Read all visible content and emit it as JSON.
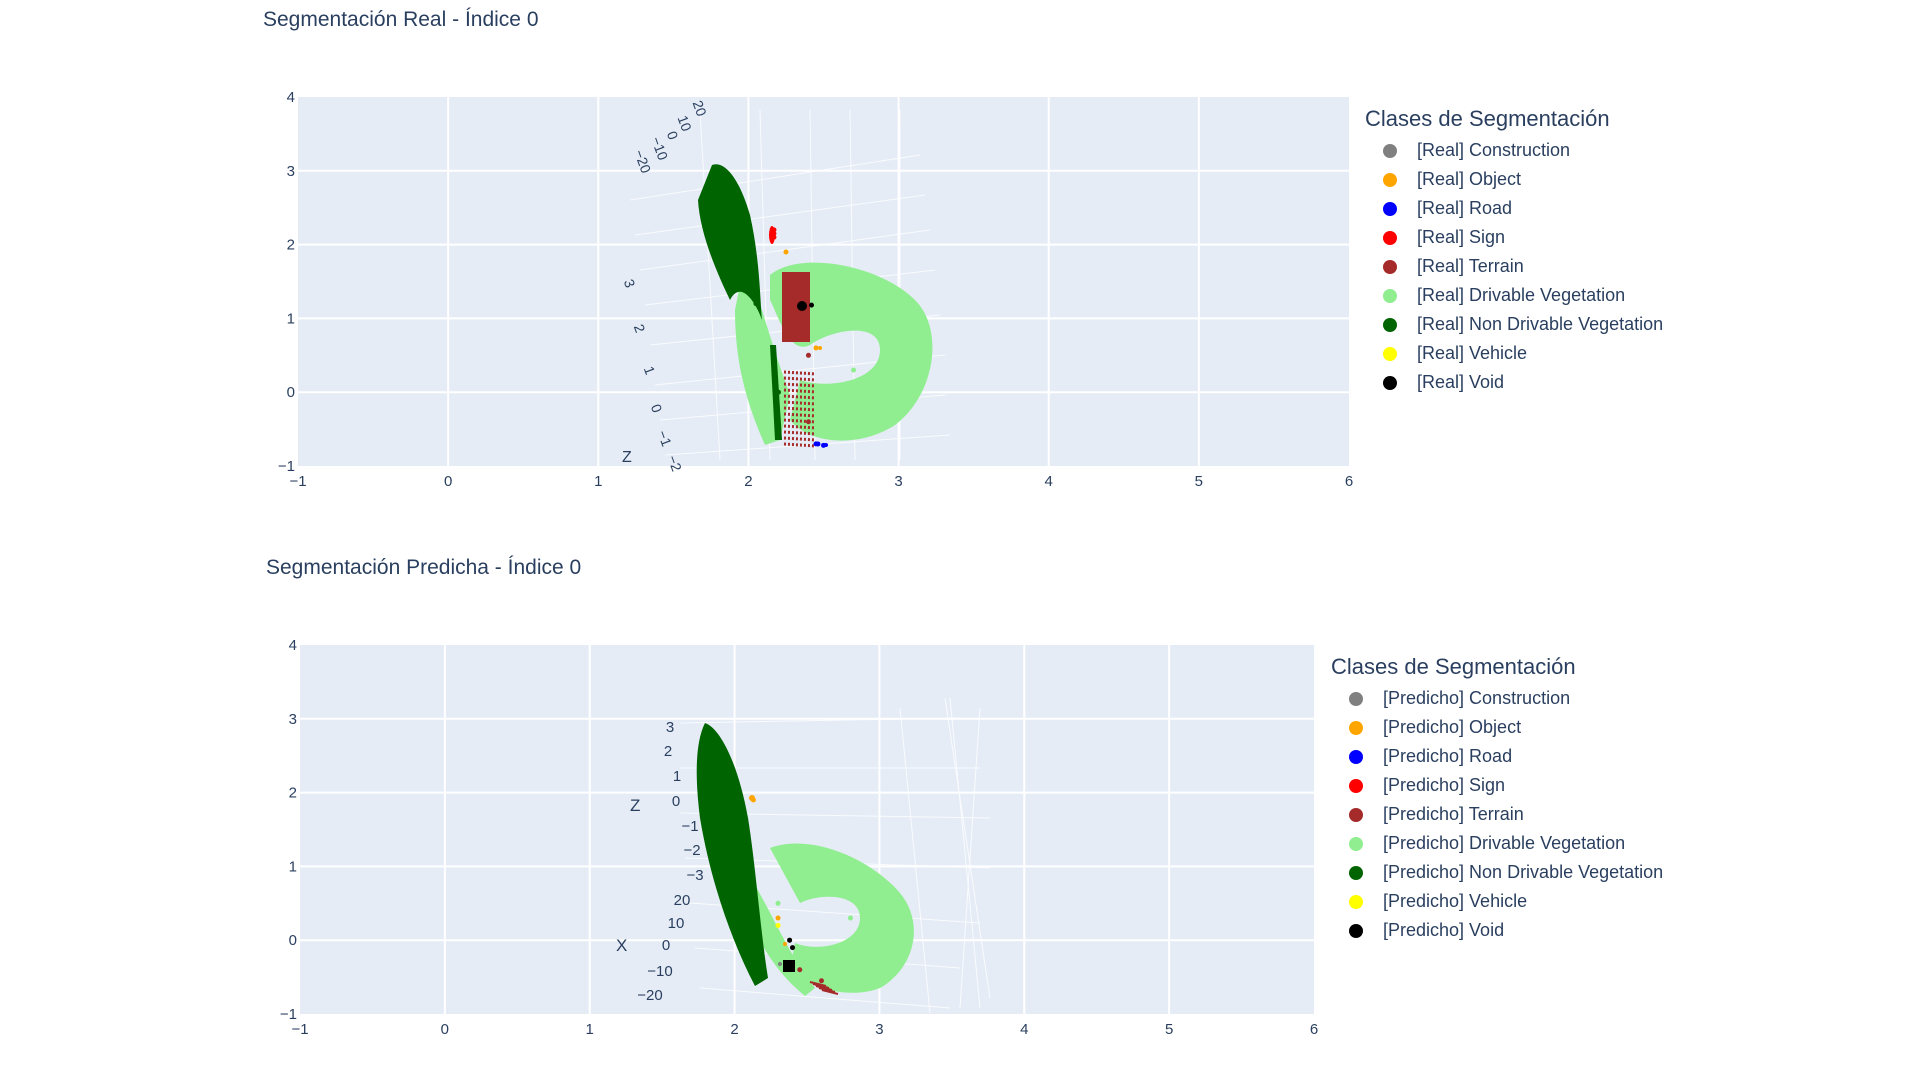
{
  "legend_title": "Clases de Segmentación",
  "classes": [
    {
      "name": "Construction",
      "color": "#808080"
    },
    {
      "name": "Object",
      "color": "#ffa500"
    },
    {
      "name": "Road",
      "color": "#0000ff"
    },
    {
      "name": "Sign",
      "color": "#ff0000"
    },
    {
      "name": "Terrain",
      "color": "#a52a2a"
    },
    {
      "name": "Drivable Vegetation",
      "color": "#90ee90"
    },
    {
      "name": "Non Drivable Vegetation",
      "color": "#006400"
    },
    {
      "name": "Vehicle",
      "color": "#ffff00"
    },
    {
      "name": "Void",
      "color": "#000000"
    }
  ],
  "top": {
    "title": "Segmentación Real - Índice 0",
    "legend_items": [
      "[Real] Construction",
      "[Real] Object",
      "[Real] Road",
      "[Real] Sign",
      "[Real] Terrain",
      "[Real] Drivable Vegetation",
      "[Real] Non Drivable Vegetation",
      "[Real] Vehicle",
      "[Real] Void"
    ],
    "scene_labels": {
      "axis_z": "Z",
      "ticks_a": [
        "20",
        "10",
        "0",
        "−10",
        "−20"
      ],
      "ticks_b": [
        "3",
        "2",
        "1",
        "0",
        "−1",
        "−2"
      ]
    }
  },
  "bottom": {
    "title": "Segmentación Predicha - Índice 0",
    "legend_items": [
      "[Predicho] Construction",
      "[Predicho] Object",
      "[Predicho] Road",
      "[Predicho] Sign",
      "[Predicho] Terrain",
      "[Predicho] Drivable Vegetation",
      "[Predicho] Non Drivable Vegetation",
      "[Predicho] Vehicle",
      "[Predicho] Void"
    ],
    "scene_labels": {
      "axis_z": "Z",
      "axis_x": "X",
      "ticks_z": [
        "3",
        "2",
        "1",
        "0",
        "−1",
        "−2",
        "−3"
      ],
      "ticks_x": [
        "20",
        "10",
        "0",
        "−10",
        "−20"
      ]
    }
  },
  "chart_data": [
    {
      "type": "scatter",
      "title": "Segmentación Real - Índice 0",
      "xlim": [
        -1,
        6
      ],
      "ylim": [
        -1,
        4
      ],
      "xticks": [
        "−1",
        "0",
        "1",
        "2",
        "3",
        "4",
        "5",
        "6"
      ],
      "yticks": [
        "−1",
        "0",
        "1",
        "2",
        "3",
        "4"
      ],
      "grid": true,
      "legend": "right",
      "series": [
        {
          "name": "[Real] Construction",
          "color": "#808080",
          "points": []
        },
        {
          "name": "[Real] Object",
          "color": "#ffa500",
          "points": [
            [
              2.45,
              0.6
            ],
            [
              2.25,
              1.9
            ]
          ]
        },
        {
          "name": "[Real] Road",
          "color": "#0000ff",
          "points": [
            [
              2.45,
              -0.7
            ],
            [
              2.5,
              -0.72
            ]
          ]
        },
        {
          "name": "[Real] Sign",
          "color": "#ff0000",
          "points": [
            [
              2.17,
              2.15
            ],
            [
              2.17,
              2.2
            ],
            [
              2.17,
              2.1
            ]
          ]
        },
        {
          "name": "[Real] Terrain",
          "color": "#a52a2a",
          "points": [
            [
              2.35,
              1.3
            ],
            [
              2.4,
              0.5
            ],
            [
              2.4,
              -0.4
            ]
          ]
        },
        {
          "name": "[Real] Drivable Vegetation",
          "color": "#90ee90",
          "points": [
            [
              2.7,
              0.3
            ],
            [
              2.1,
              0.8
            ],
            [
              3.0,
              0.4
            ]
          ]
        },
        {
          "name": "[Real] Non Drivable Vegetation",
          "color": "#006400",
          "points": [
            [
              1.9,
              2.2
            ],
            [
              2.05,
              1.2
            ],
            [
              2.2,
              0.0
            ]
          ]
        },
        {
          "name": "[Real] Vehicle",
          "color": "#ffff00",
          "points": []
        },
        {
          "name": "[Real] Void",
          "color": "#000000",
          "points": [
            [
              2.42,
              1.18
            ]
          ]
        }
      ]
    },
    {
      "type": "scatter",
      "title": "Segmentación Predicha - Índice 0",
      "xlim": [
        -1,
        6
      ],
      "ylim": [
        -1,
        4
      ],
      "xticks": [
        "−1",
        "0",
        "1",
        "2",
        "3",
        "4",
        "5",
        "6"
      ],
      "yticks": [
        "−1",
        "0",
        "1",
        "2",
        "3",
        "4"
      ],
      "grid": true,
      "legend": "right",
      "series": [
        {
          "name": "[Predicho] Construction",
          "color": "#808080",
          "points": [
            [
              2.38,
              0.0
            ]
          ]
        },
        {
          "name": "[Predicho] Object",
          "color": "#ffa500",
          "points": [
            [
              2.13,
              1.9
            ],
            [
              2.3,
              0.3
            ]
          ]
        },
        {
          "name": "[Predicho] Road",
          "color": "#0000ff",
          "points": []
        },
        {
          "name": "[Predicho] Sign",
          "color": "#ff0000",
          "points": []
        },
        {
          "name": "[Predicho] Terrain",
          "color": "#a52a2a",
          "points": [
            [
              2.6,
              -0.55
            ],
            [
              2.45,
              -0.4
            ]
          ]
        },
        {
          "name": "[Predicho] Drivable Vegetation",
          "color": "#90ee90",
          "points": [
            [
              2.8,
              0.3
            ],
            [
              2.3,
              0.5
            ],
            [
              3.0,
              -0.2
            ]
          ]
        },
        {
          "name": "[Predicho] Non Drivable Vegetation",
          "color": "#006400",
          "points": [
            [
              1.9,
              2.0
            ],
            [
              2.0,
              1.0
            ],
            [
              2.1,
              0.0
            ]
          ]
        },
        {
          "name": "[Predicho] Vehicle",
          "color": "#ffff00",
          "points": [
            [
              2.3,
              0.2
            ]
          ]
        },
        {
          "name": "[Predicho] Void",
          "color": "#000000",
          "points": [
            [
              2.38,
              0.0
            ],
            [
              2.4,
              -0.1
            ]
          ]
        }
      ]
    }
  ]
}
